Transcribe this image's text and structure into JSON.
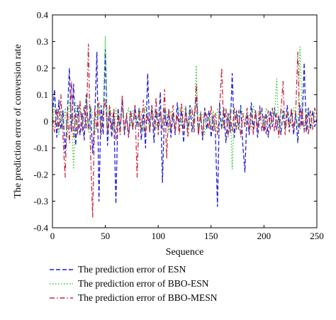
{
  "chart_data": {
    "type": "line",
    "xlabel": "Sequence",
    "ylabel": "The prediction error of conversion rate",
    "xlim": [
      0,
      250
    ],
    "ylim": [
      -0.4,
      0.4
    ],
    "xticks": [
      0,
      50,
      100,
      150,
      200,
      250
    ],
    "yticks": [
      -0.4,
      -0.3,
      -0.2,
      -0.1,
      0,
      0.1,
      0.2,
      0.3,
      0.4
    ],
    "ytick_labels": [
      "-0.4",
      "-0.3",
      "-0.2",
      "-0.1",
      "0",
      "0.1",
      "0.2",
      "0.3",
      "0.4"
    ],
    "grid": false,
    "legend_position": "below plot",
    "x": [
      0,
      2,
      4,
      6,
      8,
      10,
      12,
      14,
      16,
      18,
      20,
      22,
      24,
      26,
      28,
      30,
      32,
      34,
      36,
      38,
      40,
      42,
      44,
      46,
      48,
      50,
      52,
      54,
      56,
      58,
      60,
      62,
      64,
      66,
      68,
      70,
      72,
      74,
      76,
      78,
      80,
      82,
      84,
      86,
      88,
      90,
      92,
      94,
      96,
      98,
      100,
      102,
      104,
      106,
      108,
      110,
      112,
      114,
      116,
      118,
      120,
      122,
      124,
      126,
      128,
      130,
      132,
      134,
      136,
      138,
      140,
      142,
      144,
      146,
      148,
      150,
      152,
      154,
      156,
      158,
      160,
      162,
      164,
      166,
      168,
      170,
      172,
      174,
      176,
      178,
      180,
      182,
      184,
      186,
      188,
      190,
      192,
      194,
      196,
      198,
      200,
      202,
      204,
      206,
      208,
      210,
      212,
      214,
      216,
      218,
      220,
      222,
      224,
      226,
      228,
      230,
      232,
      234,
      236,
      238,
      240,
      242,
      244,
      246,
      248,
      250
    ],
    "series": [
      {
        "name": "The prediction error of ESN",
        "color": "#1f1fd6",
        "style": "dashed",
        "values": [
          0.03,
          0.12,
          -0.06,
          0.08,
          -0.03,
          0.04,
          -0.12,
          0.02,
          0.2,
          -0.04,
          0.14,
          -0.09,
          0.06,
          -0.05,
          0.03,
          -0.07,
          0.1,
          -0.03,
          0.05,
          -0.12,
          0.02,
          0.26,
          -0.3,
          0.06,
          -0.05,
          0.27,
          -0.09,
          0.04,
          -0.06,
          0.03,
          -0.31,
          0.05,
          -0.03,
          0.08,
          -0.05,
          0.02,
          -0.06,
          0.04,
          -0.03,
          0.06,
          -0.02,
          0.05,
          -0.07,
          0.03,
          -0.1,
          0.18,
          -0.04,
          0.06,
          -0.08,
          0.04,
          -0.03,
          0.11,
          -0.23,
          0.05,
          -0.02,
          0.04,
          -0.06,
          0.03,
          -0.05,
          0.07,
          -0.02,
          0.04,
          -0.08,
          0.05,
          -0.03,
          0.06,
          -0.04,
          0.02,
          0.09,
          -0.05,
          0.03,
          -0.07,
          0.05,
          -0.03,
          0.04,
          -0.06,
          0.02,
          -0.04,
          -0.32,
          0.07,
          -0.03,
          0.05,
          -0.08,
          0.03,
          -0.04,
          0.18,
          -0.06,
          0.04,
          -0.03,
          0.06,
          -0.09,
          -0.19,
          0.03,
          -0.05,
          0.07,
          -0.03,
          0.04,
          -0.06,
          0.02,
          0.05,
          -0.04,
          0.03,
          -0.06,
          0.04,
          -0.02,
          0.05,
          -0.03,
          0.02,
          -0.05,
          0.04,
          -0.03,
          0.06,
          -0.02,
          0.04,
          -0.05,
          0.03,
          -0.08,
          0.06,
          -0.02,
          0.22,
          -0.04,
          0.05,
          -0.03,
          0.04,
          -0.02,
          0.01
        ]
      },
      {
        "name": "The prediction error of BBO-ESN",
        "color": "#2ec82e",
        "style": "dotted",
        "values": [
          -0.02,
          0.06,
          0.03,
          -0.05,
          0.04,
          -0.02,
          0.05,
          -0.06,
          0.08,
          0.02,
          -0.18,
          0.07,
          -0.03,
          0.05,
          -0.02,
          0.03,
          0.09,
          -0.04,
          0.06,
          0.02,
          -0.05,
          0.04,
          0.06,
          -0.03,
          0.05,
          0.32,
          -0.03,
          0.06,
          0.02,
          -0.04,
          0.05,
          -0.02,
          0.03,
          0.04,
          -0.03,
          0.02,
          0.05,
          -0.02,
          0.04,
          0.03,
          -0.02,
          0.05,
          0.03,
          -0.04,
          0.06,
          0.02,
          -0.03,
          0.05,
          0.02,
          -0.03,
          0.04,
          0.02,
          -0.02,
          0.05,
          0.03,
          -0.04,
          0.04,
          0.02,
          -0.03,
          0.03,
          0.05,
          -0.02,
          0.04,
          0.06,
          -0.03,
          0.05,
          0.02,
          -0.04,
          0.21,
          -0.03,
          0.04,
          0.02,
          -0.05,
          0.03,
          0.02,
          -0.02,
          0.04,
          -0.03,
          0.05,
          0.02,
          -0.03,
          0.04,
          0.02,
          -0.02,
          0.05,
          -0.18,
          0.04,
          0.02,
          -0.03,
          0.05,
          0.03,
          -0.02,
          0.04,
          0.02,
          -0.03,
          0.06,
          0.02,
          -0.02,
          0.04,
          0.03,
          -0.02,
          0.05,
          0.03,
          -0.02,
          0.04,
          0.02,
          0.16,
          -0.03,
          0.05,
          0.02,
          -0.03,
          0.04,
          0.02,
          -0.02,
          0.05,
          0.03,
          -0.02,
          0.28,
          0.03,
          -0.04,
          0.05,
          0.02,
          -0.03,
          0.04,
          0.02,
          0.01
        ]
      },
      {
        "name": "The prediction error of BBO-MESN",
        "color": "#c8283c",
        "style": "dashdot",
        "values": [
          0.01,
          -0.04,
          0.05,
          -0.03,
          0.1,
          -0.06,
          -0.21,
          0.04,
          -0.08,
          0.15,
          -0.06,
          0.03,
          -0.05,
          0.08,
          -0.04,
          0.06,
          -0.03,
          0.29,
          -0.11,
          -0.36,
          0.05,
          -0.03,
          0.07,
          -0.05,
          0.04,
          0.08,
          -0.04,
          0.06,
          -0.03,
          0.05,
          -0.07,
          0.03,
          -0.05,
          0.1,
          -0.04,
          0.03,
          -0.06,
          0.04,
          -0.03,
          0.06,
          -0.21,
          0.04,
          -0.03,
          0.08,
          -0.05,
          0.03,
          -0.04,
          0.06,
          -0.03,
          0.09,
          -0.05,
          0.04,
          -0.03,
          0.12,
          -0.14,
          0.05,
          -0.03,
          0.06,
          -0.04,
          0.03,
          -0.05,
          0.07,
          -0.03,
          0.04,
          -0.06,
          0.03,
          0.05,
          -0.04,
          0.14,
          -0.05,
          0.03,
          -0.06,
          0.04,
          0.02,
          -0.03,
          0.06,
          -0.04,
          0.03,
          -0.05,
          0.04,
          0.2,
          -0.03,
          0.05,
          -0.06,
          0.03,
          -0.04,
          0.05,
          -0.03,
          0.04,
          -0.06,
          0.03,
          -0.02,
          0.05,
          -0.04,
          0.03,
          -0.05,
          0.04,
          -0.03,
          0.06,
          -0.04,
          0.02,
          -0.05,
          0.04,
          -0.03,
          0.05,
          -0.04,
          0.03,
          -0.06,
          0.04,
          0.15,
          -0.05,
          0.03,
          -0.04,
          0.05,
          -0.03,
          0.04,
          0.26,
          -0.03,
          0.05,
          -0.04,
          0.03,
          -0.05,
          0.04,
          -0.03,
          0.05,
          0.02
        ]
      }
    ]
  }
}
